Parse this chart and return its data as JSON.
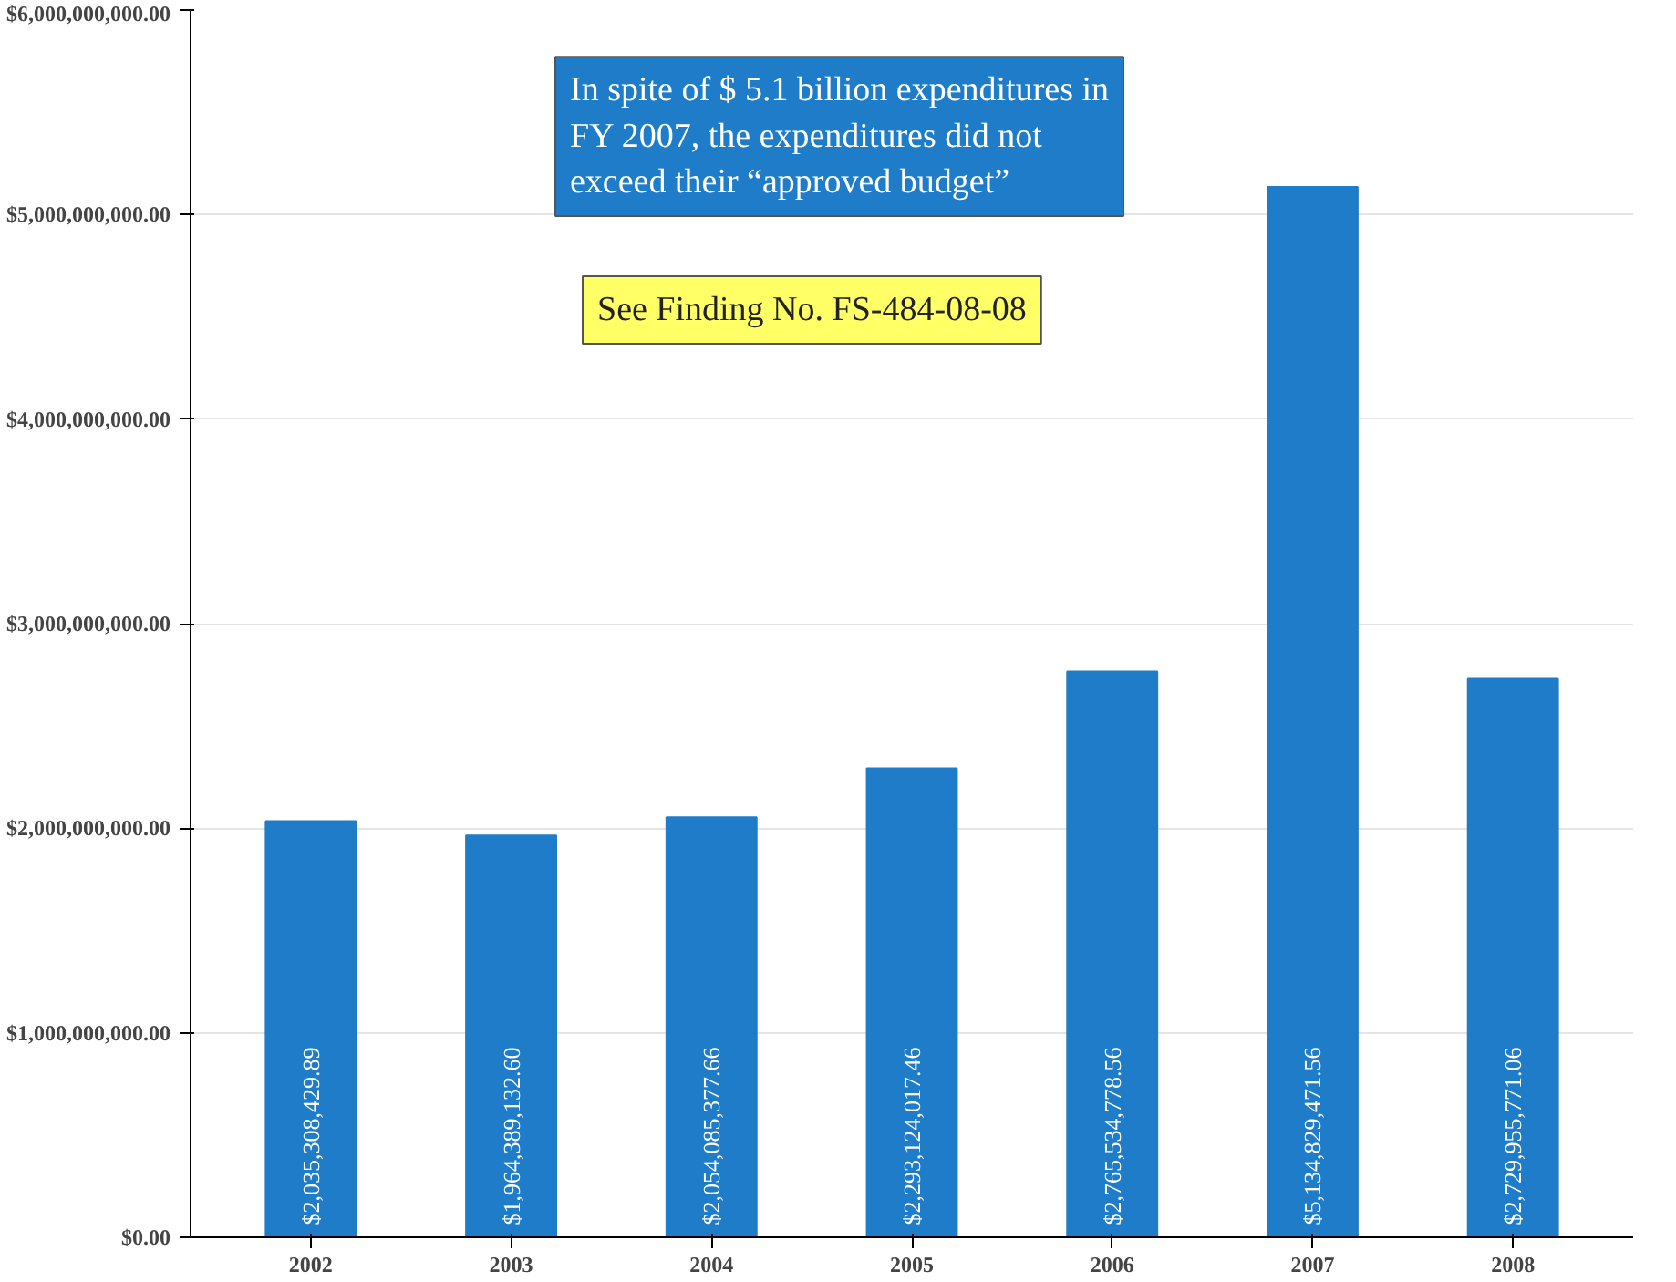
{
  "chart_data": {
    "type": "bar",
    "categories": [
      "2002",
      "2003",
      "2004",
      "2005",
      "2006",
      "2007",
      "2008"
    ],
    "values": [
      2035308429.89,
      1964389132.6,
      2054085377.66,
      2293124017.46,
      2765534778.56,
      5134829471.56,
      2729955771.06
    ],
    "value_labels": [
      "$2,035,308,429.89",
      "$1,964,389,132.60",
      "$2,054,085,377.66",
      "$2,293,124,017.46",
      "$2,765,534,778.56",
      "$5,134,829,471.56",
      "$2,729,955,771.06"
    ],
    "color": "#1f7cc8",
    "ylim": [
      0,
      6000000000
    ],
    "yticks": [
      {
        "value": 0,
        "label": "$0.00"
      },
      {
        "value": 1000000000,
        "label": "$1,000,000,000.00"
      },
      {
        "value": 2000000000,
        "label": "$2,000,000,000.00"
      },
      {
        "value": 3000000000,
        "label": "$3,000,000,000.00"
      },
      {
        "value": 4000000000,
        "label": "$4,000,000,000.00"
      },
      {
        "value": 5000000000,
        "label": "$5,000,000,000.00"
      },
      {
        "value": 6000000000,
        "label": "$6,000,000,000.00"
      }
    ],
    "grid": "y",
    "annotations": [
      "In spite of $ 5.1 billion expenditures in\nFY 2007, the expenditures did not\nexceed their “approved budget”",
      "See Finding No. FS-484-08-08"
    ]
  }
}
